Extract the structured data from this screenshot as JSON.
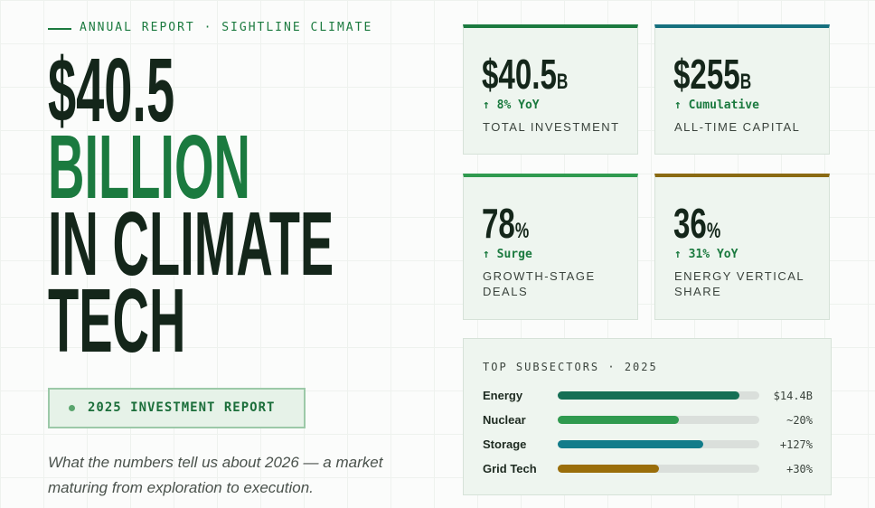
{
  "eyebrow": "ANNUAL REPORT · SIGHTLINE CLIMATE",
  "headline": [
    {
      "text": "$40.5",
      "color": "#14261a"
    },
    {
      "text": "BILLION",
      "color": "#1b7a3f"
    },
    {
      "text": "IN CLIMATE",
      "color": "#14261a"
    },
    {
      "text": "TECH",
      "color": "#14261a"
    }
  ],
  "badge": "2025 INVESTMENT REPORT",
  "intro": "What the numbers tell us about 2026 — a market maturing from exploration to execution.",
  "stats": [
    {
      "value": "$40.5",
      "unit": "B",
      "change": "↑ 8% YoY",
      "label": "TOTAL INVESTMENT",
      "color": "#1b7a3f"
    },
    {
      "value": "$255",
      "unit": "B",
      "change": "↑ Cumulative",
      "label": "ALL-TIME CAPITAL",
      "color": "#16707f"
    },
    {
      "value": "78",
      "unit": "%",
      "change": "↑ Surge",
      "label": "GROWTH-STAGE DEALS",
      "color": "#2f9a4f"
    },
    {
      "value": "36",
      "unit": "%",
      "change": "↑ 31% YoY",
      "label": "ENERGY VERTICAL SHARE",
      "color": "#8a6a12"
    }
  ],
  "subsectors": {
    "title": "TOP SUBSECTORS · 2025",
    "rows": [
      {
        "name": "Energy",
        "fill": 90,
        "label": "$14.4B",
        "color": "#166f55"
      },
      {
        "name": "Nuclear",
        "fill": 60,
        "label": "~20%",
        "color": "#2f9a4f"
      },
      {
        "name": "Storage",
        "fill": 72,
        "label": "+127%",
        "color": "#127c8a"
      },
      {
        "name": "Grid Tech",
        "fill": 50,
        "label": "+30%",
        "color": "#9a6e0a"
      }
    ]
  }
}
